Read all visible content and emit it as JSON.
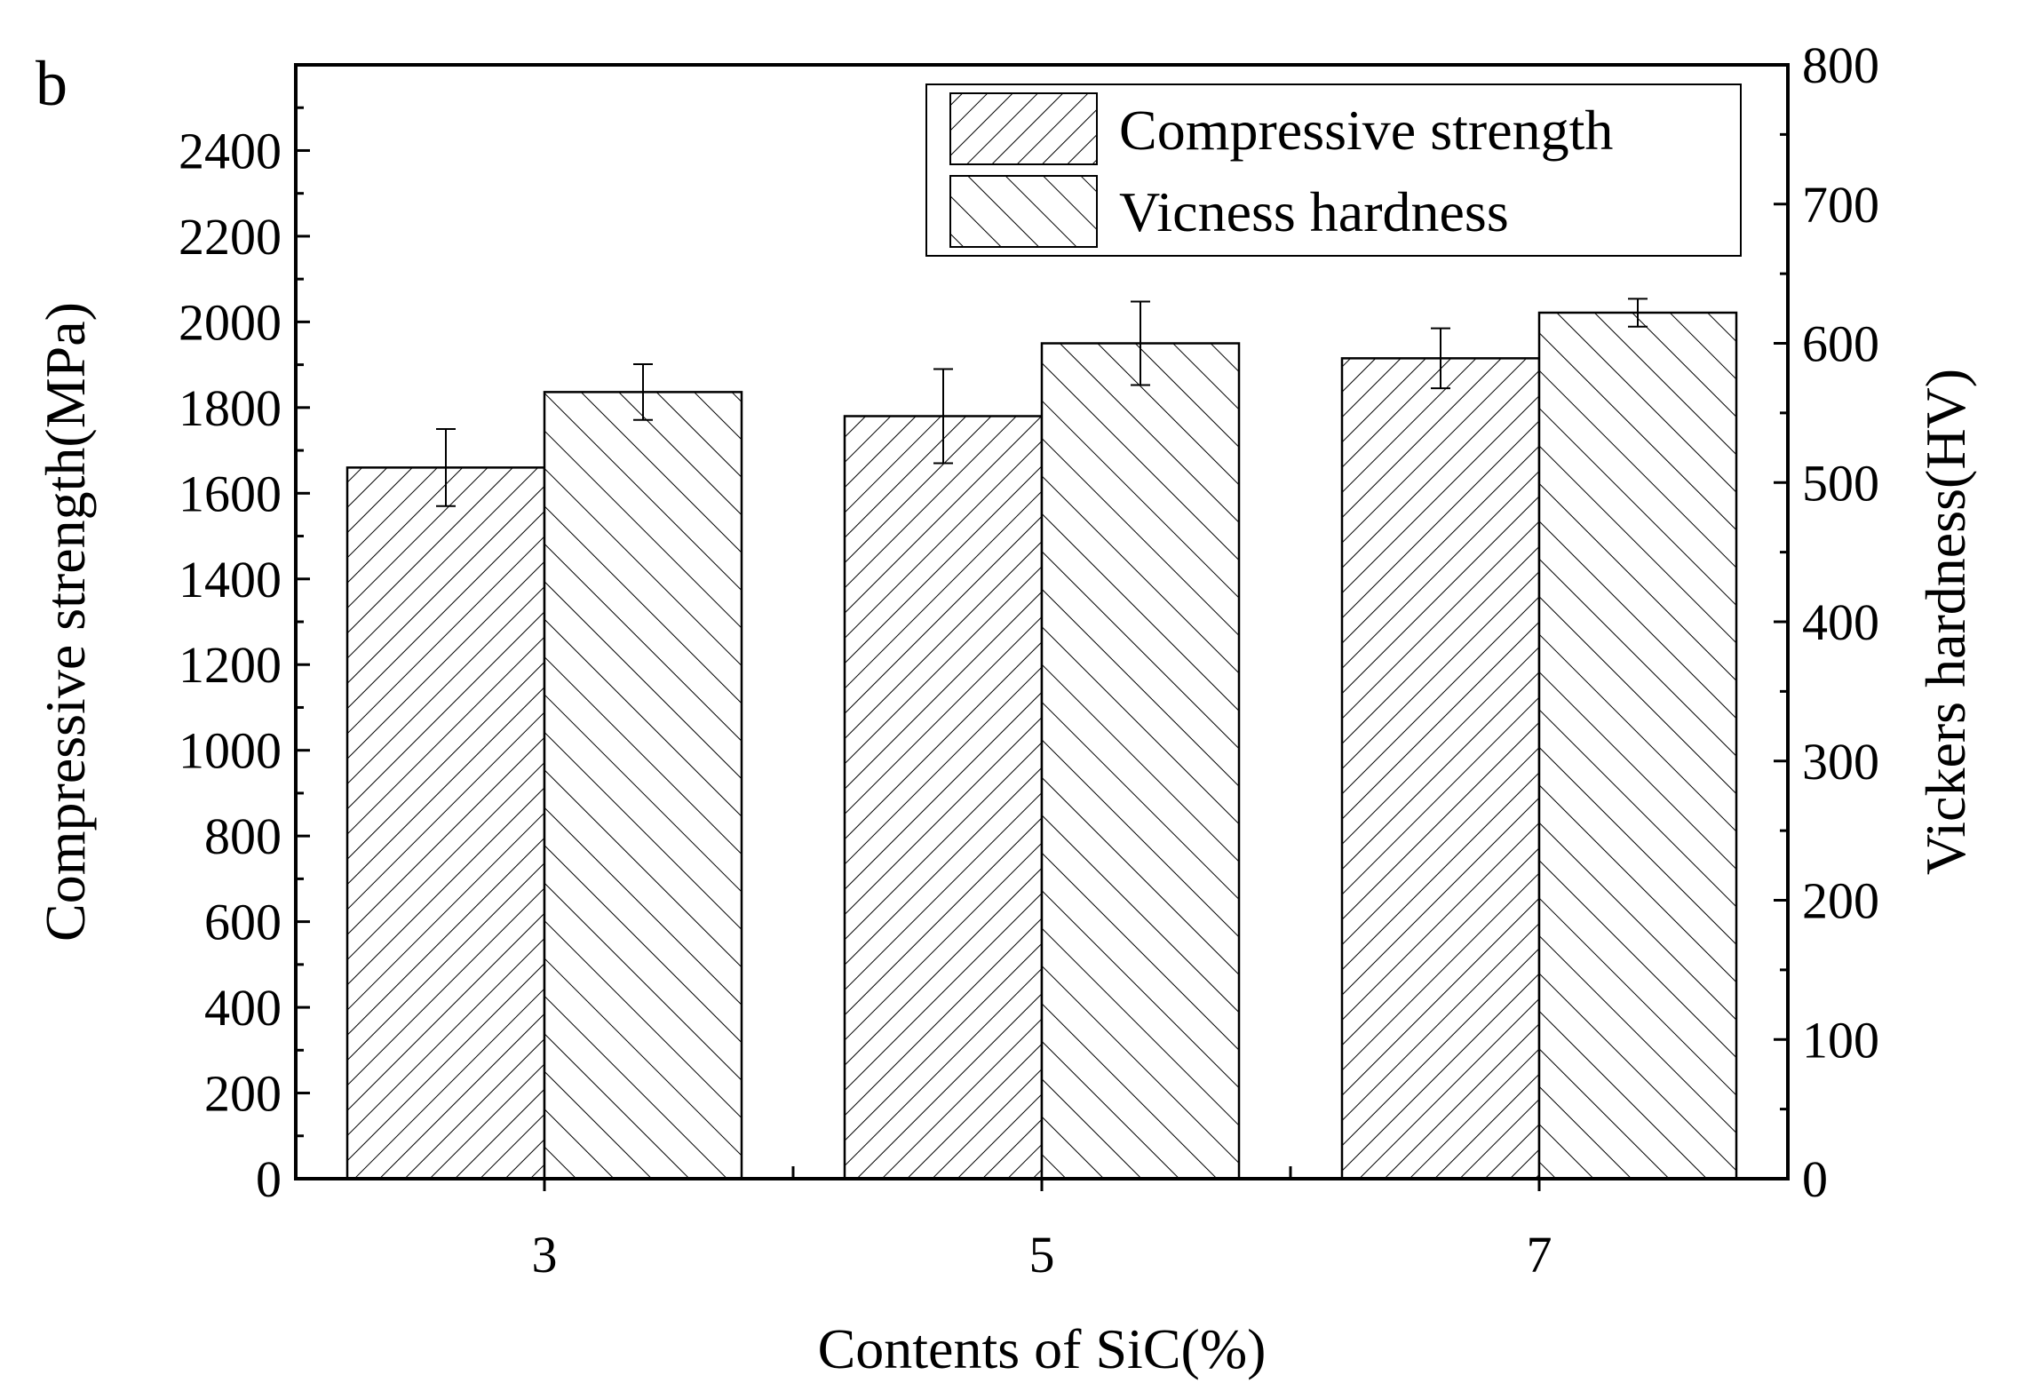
{
  "panel_label": "b",
  "chart_data": {
    "type": "bar",
    "xlabel": "Contents of SiC(%)",
    "ylabel": "Compressive strength(MPa)",
    "y2label": "Vickers hardness(HV)",
    "categories": [
      "3",
      "5",
      "7"
    ],
    "ylim": [
      0,
      2600
    ],
    "y2lim": [
      0,
      800
    ],
    "yticks": [
      0,
      200,
      400,
      600,
      800,
      1000,
      1200,
      1400,
      1600,
      1800,
      2000,
      2200,
      2400
    ],
    "y2ticks": [
      0,
      100,
      200,
      300,
      400,
      500,
      600,
      700,
      800
    ],
    "legend_position": "top-right",
    "grid": false,
    "series": [
      {
        "name": "Compressive strength",
        "axis": "left",
        "hatch": "forward-diagonal",
        "values": [
          1660,
          1780,
          1915
        ],
        "errors": [
          90,
          110,
          70
        ]
      },
      {
        "name": "Vicness hardness",
        "axis": "right",
        "hatch": "backward-diagonal",
        "values": [
          565,
          600,
          622
        ],
        "errors": [
          20,
          30,
          10
        ]
      }
    ]
  }
}
